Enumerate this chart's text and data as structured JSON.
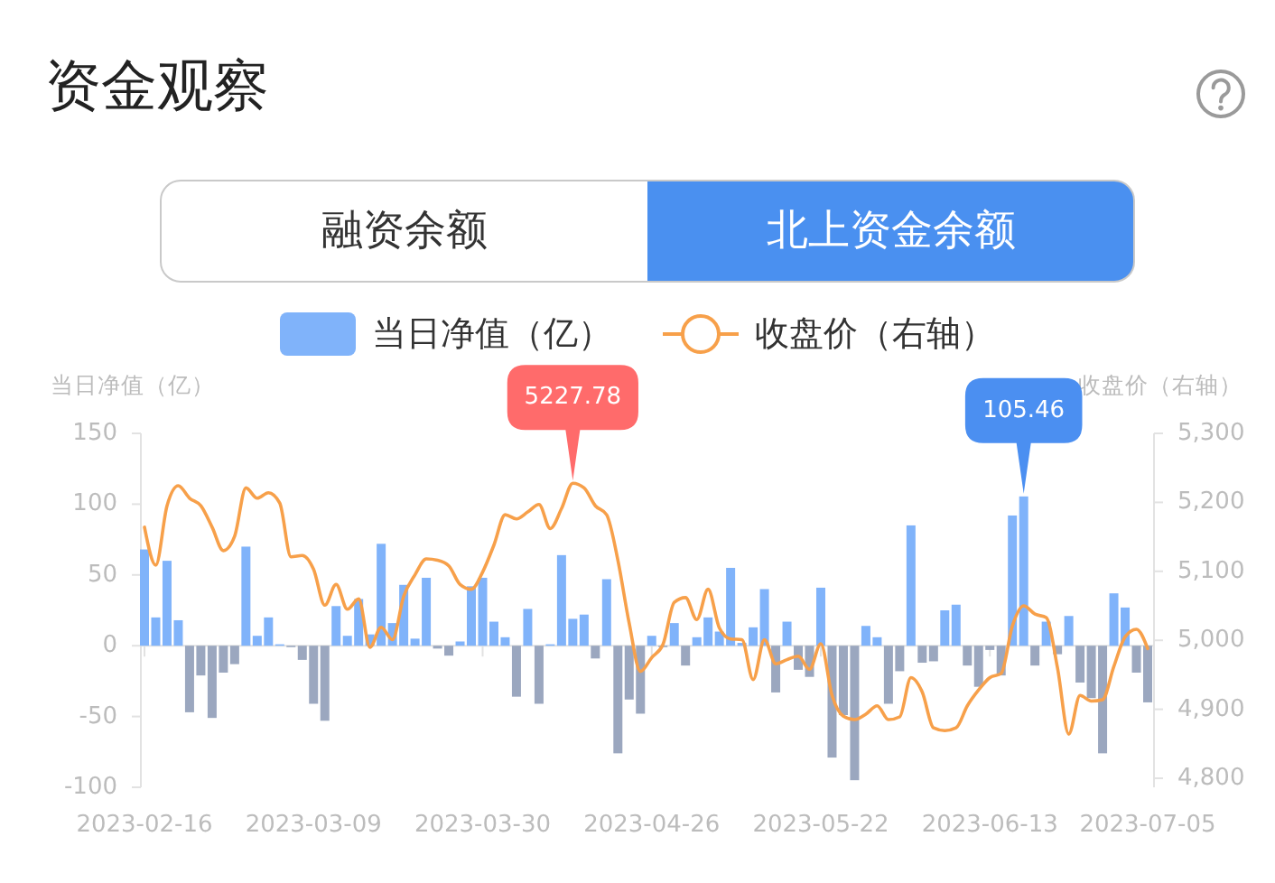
{
  "chart_data": {
    "type": "bar",
    "title": "资金观察",
    "annotations": [
      "融资余额",
      "北上资金余额"
    ],
    "ylabel": "当日净值（亿）",
    "y2label": "收盘价（右轴）",
    "legend": "top",
    "categories": [
      "2023-02-16",
      null,
      null,
      null,
      null,
      null,
      null,
      null,
      null,
      null,
      null,
      null,
      null,
      null,
      null,
      "2023-03-09",
      null,
      null,
      null,
      null,
      null,
      null,
      null,
      null,
      null,
      null,
      null,
      null,
      null,
      null,
      "2023-03-30",
      null,
      null,
      null,
      null,
      null,
      null,
      null,
      null,
      null,
      null,
      null,
      null,
      null,
      null,
      "2023-04-26",
      null,
      null,
      null,
      null,
      null,
      null,
      null,
      null,
      null,
      null,
      null,
      null,
      null,
      null,
      "2023-05-22",
      null,
      null,
      null,
      null,
      null,
      null,
      null,
      null,
      null,
      null,
      null,
      null,
      null,
      null,
      "2023-06-13",
      null,
      null,
      null,
      null,
      null,
      null,
      null,
      null,
      null,
      null,
      null,
      null,
      null,
      "2023-07-05"
    ],
    "ylim": [
      -100,
      150
    ],
    "yticks": [
      150,
      100,
      50,
      0,
      -50,
      -100
    ],
    "y2lim": [
      4800,
      5300
    ],
    "y2ticks": [
      {
        "value": 5300,
        "label": "5,300"
      },
      {
        "value": 5200,
        "label": "5,200"
      },
      {
        "value": 5100,
        "label": "5,100"
      },
      {
        "value": 5000,
        "label": "5,000"
      },
      {
        "value": 4900,
        "label": "4,900"
      },
      {
        "value": 4800,
        "label": "4,800"
      }
    ],
    "series": [
      {
        "name": "当日净值（亿）",
        "color": "#80b3fa",
        "values": [
          68,
          20,
          60,
          18,
          -47,
          -21,
          -51,
          -19,
          -13,
          70,
          7,
          20,
          1,
          -1,
          -10,
          -41,
          -53,
          28,
          7,
          33,
          8,
          72,
          16,
          43,
          5,
          48,
          -2,
          -7,
          3,
          42,
          48,
          17,
          6,
          -36,
          26,
          -41,
          1,
          64,
          19,
          22,
          -9,
          47,
          -76,
          -38,
          -48,
          7,
          -1,
          16,
          -14,
          6,
          20,
          10,
          55,
          2,
          13,
          40,
          -33,
          17,
          -17,
          -22,
          41,
          -79,
          -49,
          -95,
          14,
          6,
          -41,
          -18,
          85,
          -12,
          -11,
          25,
          29,
          -14,
          -29,
          -3,
          -21,
          92,
          105.46,
          -14,
          17,
          -6,
          21,
          -26,
          -37,
          -76,
          37,
          27,
          -19,
          -40
        ],
        "colors": [
          "#80b3fa",
          "#80b3fa",
          "#80b3fa",
          "#80b3fa",
          "#9ba7bf",
          "#9ba7bf",
          "#9ba7bf",
          "#9ba7bf",
          "#9ba7bf",
          "#80b3fa",
          "#80b3fa",
          "#80b3fa",
          "#80b3fa",
          "#9ba7bf",
          "#9ba7bf",
          "#9ba7bf",
          "#9ba7bf",
          "#80b3fa",
          "#80b3fa",
          "#80b3fa",
          "#80b3fa",
          "#80b3fa",
          "#80b3fa",
          "#80b3fa",
          "#80b3fa",
          "#80b3fa",
          "#9ba7bf",
          "#9ba7bf",
          "#80b3fa",
          "#80b3fa",
          "#80b3fa",
          "#80b3fa",
          "#80b3fa",
          "#9ba7bf",
          "#80b3fa",
          "#9ba7bf",
          "#80b3fa",
          "#80b3fa",
          "#80b3fa",
          "#80b3fa",
          "#9ba7bf",
          "#80b3fa",
          "#9ba7bf",
          "#9ba7bf",
          "#9ba7bf",
          "#80b3fa",
          "#9ba7bf",
          "#80b3fa",
          "#9ba7bf",
          "#80b3fa",
          "#80b3fa",
          "#80b3fa",
          "#80b3fa",
          "#80b3fa",
          "#80b3fa",
          "#80b3fa",
          "#9ba7bf",
          "#80b3fa",
          "#9ba7bf",
          "#9ba7bf",
          "#80b3fa",
          "#9ba7bf",
          "#9ba7bf",
          "#9ba7bf",
          "#80b3fa",
          "#80b3fa",
          "#9ba7bf",
          "#9ba7bf",
          "#80b3fa",
          "#9ba7bf",
          "#9ba7bf",
          "#80b3fa",
          "#80b3fa",
          "#9ba7bf",
          "#9ba7bf",
          "#9ba7bf",
          "#9ba7bf",
          "#80b3fa",
          "#80b3fa",
          "#9ba7bf",
          "#80b3fa",
          "#9ba7bf",
          "#80b3fa",
          "#9ba7bf",
          "#9ba7bf",
          "#9ba7bf",
          "#80b3fa",
          "#80b3fa",
          "#9ba7bf",
          "#9ba7bf"
        ],
        "value_labels": [
          null,
          null,
          null,
          null,
          null,
          null,
          null,
          null,
          null,
          null,
          null,
          null,
          null,
          null,
          null,
          null,
          null,
          null,
          null,
          null,
          null,
          null,
          null,
          null,
          null,
          null,
          null,
          null,
          null,
          null,
          null,
          null,
          null,
          null,
          null,
          null,
          null,
          null,
          null,
          null,
          null,
          null,
          null,
          null,
          null,
          null,
          null,
          null,
          null,
          null,
          null,
          null,
          null,
          null,
          null,
          null,
          null,
          null,
          null,
          null,
          null,
          null,
          null,
          null,
          null,
          null,
          null,
          null,
          null,
          null,
          null,
          null,
          null,
          null,
          null,
          null,
          null,
          null,
          "105.46",
          null,
          null,
          null,
          null,
          null,
          null,
          null,
          null,
          null,
          null,
          null
        ]
      },
      {
        "type": "line",
        "name": "收盘价（右轴）",
        "color": "#f7a04a",
        "axis": "y2",
        "values": [
          5164,
          5109,
          5195,
          5224,
          5206,
          5195,
          5164,
          5130,
          5151,
          5221,
          5206,
          5214,
          5199,
          5121,
          5123,
          5103,
          5051,
          5081,
          5045,
          5060,
          4990,
          5019,
          5001,
          5064,
          5095,
          5118,
          5116,
          5108,
          5081,
          5074,
          5099,
          5138,
          5182,
          5176,
          5186,
          5197,
          5162,
          5191,
          5227.78,
          5221,
          5195,
          5182,
          5116,
          5025,
          4955,
          4975,
          4994,
          5055,
          5062,
          5030,
          5074,
          5018,
          5002,
          5001,
          4943,
          5001,
          4966,
          4972,
          4977,
          4958,
          4995,
          4920,
          4890,
          4885,
          4893,
          4905,
          4885,
          4889,
          4946,
          4925,
          4873,
          4869,
          4873,
          4905,
          4928,
          4946,
          4952,
          5021,
          5050,
          5038,
          5033,
          4960,
          4864,
          4920,
          4912,
          4914,
          4962,
          5005,
          5016,
          4988
        ],
        "value_labels": [
          null,
          null,
          null,
          null,
          null,
          null,
          null,
          null,
          null,
          null,
          null,
          null,
          null,
          null,
          null,
          null,
          null,
          null,
          null,
          null,
          null,
          null,
          null,
          null,
          null,
          null,
          null,
          null,
          null,
          null,
          null,
          null,
          null,
          null,
          null,
          null,
          null,
          null,
          "5227.78",
          null,
          null,
          null,
          null,
          null,
          null,
          null,
          null,
          null,
          null,
          null,
          null,
          null,
          null,
          null,
          null,
          null,
          null,
          null,
          null,
          null,
          null,
          null,
          null,
          null,
          null,
          null,
          null,
          null,
          null,
          null,
          null,
          null,
          null,
          null,
          null,
          null,
          null,
          null,
          null,
          null,
          null,
          null,
          null,
          null,
          null,
          null,
          null,
          null,
          null,
          null
        ]
      }
    ]
  }
}
